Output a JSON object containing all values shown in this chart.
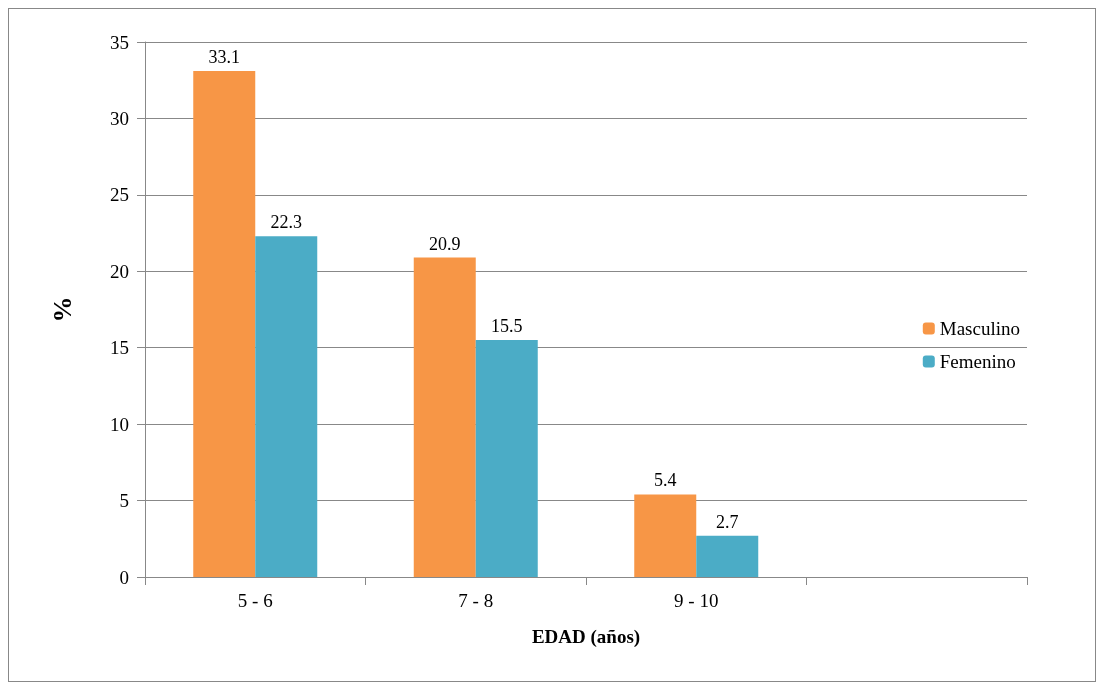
{
  "chart_data": {
    "type": "bar",
    "xlabel": "EDAD (años)",
    "ylabel": "%",
    "categories": [
      "5 - 6",
      "7 - 8",
      "9 - 10",
      null
    ],
    "series": [
      {
        "name": "Masculino",
        "color": "#f79646",
        "values": [
          33.1,
          20.9,
          5.4,
          null
        ]
      },
      {
        "name": "Femenino",
        "color": "#4bacc6",
        "values": [
          22.3,
          15.5,
          2.7,
          null
        ]
      }
    ],
    "ylim": [
      0,
      35
    ],
    "yticks": [
      0,
      5,
      10,
      15,
      20,
      25,
      30,
      35
    ],
    "grid": "y",
    "legend": "right",
    "data_labels": true
  }
}
